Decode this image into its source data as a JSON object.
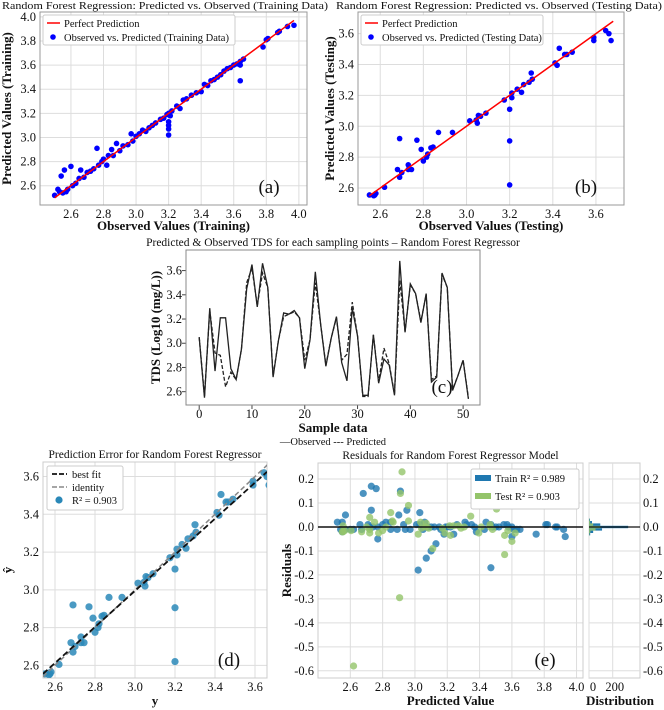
{
  "chart_data": [
    {
      "id": "a",
      "type": "scatter",
      "title": "Random Forest Regression: Predicted vs. Observed (Training Data)",
      "xlabel": "Observed Values (Training)",
      "ylabel": "Predicted Values (Training)",
      "panel_label": "(a)",
      "xticks": [
        "2.6",
        "2.8",
        "3.0",
        "3.2",
        "3.4",
        "3.6",
        "3.8",
        "4.0"
      ],
      "yticks": [
        "2.6",
        "2.8",
        "3.0",
        "3.2",
        "3.4",
        "3.6",
        "3.8",
        "4.0"
      ],
      "xlim": [
        2.41,
        4.05
      ],
      "ylim": [
        2.44,
        4.04
      ],
      "grid": true,
      "legend": [
        "Perfect Prediction",
        "Observed vs. Predicted (Training Data)"
      ],
      "legend_position": "top-left",
      "perfect_line": [
        2.5,
        3.97
      ],
      "colors": {
        "line": "#ff0000",
        "points": "#0000ff"
      },
      "points": [
        [
          2.5,
          2.52
        ],
        [
          2.52,
          2.57
        ],
        [
          2.53,
          2.55
        ],
        [
          2.54,
          2.68
        ],
        [
          2.55,
          2.54
        ],
        [
          2.56,
          2.73
        ],
        [
          2.57,
          2.55
        ],
        [
          2.58,
          2.57
        ],
        [
          2.6,
          2.76
        ],
        [
          2.61,
          2.6
        ],
        [
          2.63,
          2.62
        ],
        [
          2.65,
          2.66
        ],
        [
          2.66,
          2.73
        ],
        [
          2.68,
          2.67
        ],
        [
          2.7,
          2.71
        ],
        [
          2.72,
          2.72
        ],
        [
          2.74,
          2.74
        ],
        [
          2.76,
          2.91
        ],
        [
          2.77,
          2.77
        ],
        [
          2.79,
          2.8
        ],
        [
          2.8,
          2.82
        ],
        [
          2.82,
          2.77
        ],
        [
          2.83,
          2.85
        ],
        [
          2.85,
          2.9
        ],
        [
          2.86,
          2.85
        ],
        [
          2.88,
          2.95
        ],
        [
          2.9,
          2.89
        ],
        [
          2.92,
          2.93
        ],
        [
          2.95,
          2.94
        ],
        [
          2.97,
          3.03
        ],
        [
          2.98,
          2.97
        ],
        [
          3.0,
          3.01
        ],
        [
          3.02,
          3.03
        ],
        [
          3.04,
          3.06
        ],
        [
          3.06,
          3.05
        ],
        [
          3.08,
          3.08
        ],
        [
          3.1,
          3.1
        ],
        [
          3.12,
          3.12
        ],
        [
          3.15,
          3.15
        ],
        [
          3.17,
          3.16
        ],
        [
          3.19,
          3.19
        ],
        [
          3.2,
          3.2
        ],
        [
          3.2,
          3.13
        ],
        [
          3.2,
          3.07
        ],
        [
          3.2,
          3.02
        ],
        [
          3.2,
          3.1
        ],
        [
          3.21,
          3.18
        ],
        [
          3.22,
          3.22
        ],
        [
          3.25,
          3.26
        ],
        [
          3.27,
          3.24
        ],
        [
          3.29,
          3.31
        ],
        [
          3.31,
          3.32
        ],
        [
          3.34,
          3.35
        ],
        [
          3.37,
          3.37
        ],
        [
          3.4,
          3.38
        ],
        [
          3.42,
          3.44
        ],
        [
          3.44,
          3.43
        ],
        [
          3.46,
          3.47
        ],
        [
          3.48,
          3.48
        ],
        [
          3.5,
          3.5
        ],
        [
          3.52,
          3.52
        ],
        [
          3.54,
          3.55
        ],
        [
          3.56,
          3.57
        ],
        [
          3.58,
          3.58
        ],
        [
          3.6,
          3.6
        ],
        [
          3.62,
          3.61
        ],
        [
          3.64,
          3.63
        ],
        [
          3.64,
          3.47
        ],
        [
          3.64,
          3.6
        ],
        [
          3.66,
          3.65
        ],
        [
          3.78,
          3.75
        ],
        [
          3.8,
          3.81
        ],
        [
          3.81,
          3.82
        ],
        [
          3.87,
          3.87
        ],
        [
          3.88,
          3.88
        ],
        [
          3.93,
          3.92
        ],
        [
          3.97,
          3.93
        ]
      ]
    },
    {
      "id": "b",
      "type": "scatter",
      "title": "Random Forest Regression: Predicted vs. Observed (Testing Data)",
      "xlabel": "Observed Values (Testing)",
      "ylabel": "Predicted Values (Testing)",
      "panel_label": "(b)",
      "xticks": [
        "2.6",
        "2.8",
        "3.0",
        "3.2",
        "3.4",
        "3.6"
      ],
      "yticks": [
        "2.6",
        "2.8",
        "3.0",
        "3.2",
        "3.4",
        "3.6"
      ],
      "xlim": [
        2.497,
        3.73
      ],
      "ylim": [
        2.49,
        3.74
      ],
      "grid": true,
      "legend": [
        "Perfect Prediction",
        "Observed vs. Predicted (Testing Data)"
      ],
      "legend_position": "top-left",
      "perfect_line": [
        2.55,
        3.68
      ],
      "colors": {
        "line": "#ff0000",
        "points": "#0000ff"
      },
      "points": [
        [
          2.55,
          2.555
        ],
        [
          2.57,
          2.55
        ],
        [
          2.575,
          2.555
        ],
        [
          2.58,
          2.565
        ],
        [
          2.62,
          2.605
        ],
        [
          2.68,
          2.72
        ],
        [
          2.69,
          2.92
        ],
        [
          2.69,
          2.67
        ],
        [
          2.7,
          2.7
        ],
        [
          2.73,
          2.72
        ],
        [
          2.73,
          2.75
        ],
        [
          2.745,
          2.72
        ],
        [
          2.77,
          2.91
        ],
        [
          2.79,
          2.85
        ],
        [
          2.8,
          2.775
        ],
        [
          2.815,
          2.8
        ],
        [
          2.82,
          2.82
        ],
        [
          2.835,
          2.86
        ],
        [
          2.845,
          2.865
        ],
        [
          2.87,
          2.96
        ],
        [
          2.935,
          2.96
        ],
        [
          3.015,
          3.035
        ],
        [
          3.045,
          3.04
        ],
        [
          3.05,
          3.02
        ],
        [
          3.055,
          3.07
        ],
        [
          3.065,
          3.065
        ],
        [
          3.09,
          3.085
        ],
        [
          3.175,
          3.17
        ],
        [
          3.2,
          3.11
        ],
        [
          3.2,
          2.905
        ],
        [
          3.2,
          2.62
        ],
        [
          3.21,
          3.215
        ],
        [
          3.21,
          3.185
        ],
        [
          3.235,
          3.24
        ],
        [
          3.255,
          3.22
        ],
        [
          3.265,
          3.27
        ],
        [
          3.29,
          3.285
        ],
        [
          3.3,
          3.345
        ],
        [
          3.305,
          3.305
        ],
        [
          3.41,
          3.41
        ],
        [
          3.42,
          3.395
        ],
        [
          3.43,
          3.505
        ],
        [
          3.455,
          3.465
        ],
        [
          3.465,
          3.465
        ],
        [
          3.49,
          3.48
        ],
        [
          3.59,
          3.575
        ],
        [
          3.59,
          3.555
        ],
        [
          3.645,
          3.62
        ],
        [
          3.66,
          3.6
        ],
        [
          3.67,
          3.555
        ]
      ]
    },
    {
      "id": "c",
      "type": "line",
      "title": "Predicted & Observed TDS for each sampling points – Random Forest Regressor",
      "xlabel": "Sample data",
      "ylabel": "TDS (Log10 (mg/L))",
      "panel_label": "(c)",
      "xticks": [
        "0",
        "10",
        "20",
        "30",
        "40",
        "50"
      ],
      "yticks": [
        "2.6",
        "2.8",
        "3.0",
        "3.2",
        "3.4",
        "3.6"
      ],
      "xlim": [
        -2.5,
        53.2
      ],
      "ylim": [
        2.49,
        3.77
      ],
      "grid": false,
      "legend_text": "—Observed --- Predicted",
      "legend_position": "bottom-center",
      "series": [
        {
          "name": "Observed",
          "style": "solid",
          "values": [
            3.05,
            2.55,
            3.29,
            2.77,
            3.21,
            3.21,
            2.79,
            2.7,
            2.95,
            3.45,
            3.65,
            3.3,
            3.66,
            3.46,
            2.72,
            3.02,
            3.25,
            3.24,
            3.27,
            3.21,
            2.79,
            3.03,
            3.59,
            3.16,
            2.81,
            3.04,
            3.22,
            2.84,
            2.69,
            3.29,
            3.06,
            2.57,
            2.57,
            3.07,
            2.67,
            2.87,
            2.82,
            2.57,
            3.68,
            3.09,
            3.49,
            3.41,
            3.17,
            3.41,
            2.68,
            2.72,
            3.58,
            3.46,
            2.61,
            2.73,
            2.86,
            2.54
          ]
        },
        {
          "name": "Predicted",
          "style": "dashed",
          "values": [
            3.05,
            2.56,
            3.27,
            2.92,
            2.9,
            2.64,
            2.76,
            2.7,
            2.95,
            3.5,
            3.62,
            3.31,
            3.58,
            3.46,
            2.73,
            3.02,
            3.22,
            3.24,
            3.26,
            3.21,
            2.86,
            3.03,
            3.5,
            3.16,
            2.82,
            3.04,
            3.21,
            2.86,
            2.91,
            3.34,
            3.06,
            2.56,
            2.56,
            3.07,
            2.68,
            2.96,
            2.83,
            2.58,
            3.52,
            3.1,
            3.48,
            3.41,
            3.18,
            3.4,
            2.7,
            2.73,
            3.57,
            3.46,
            2.62,
            2.73,
            2.86,
            2.55
          ]
        }
      ]
    },
    {
      "id": "d",
      "type": "scatter",
      "title": "Prediction Error for Random Forest Regressor",
      "xlabel": "y",
      "ylabel": "ŷ",
      "panel_label": "(d)",
      "xticks": [
        "2.6",
        "2.8",
        "3.0",
        "3.2",
        "3.4",
        "3.6"
      ],
      "yticks": [
        "2.6",
        "2.8",
        "3.0",
        "3.2",
        "3.4",
        "3.6"
      ],
      "xlim": [
        2.54,
        3.66
      ],
      "ylim": [
        2.533,
        3.677
      ],
      "grid": true,
      "legend": [
        "best fit",
        "identity",
        "R² = 0.903"
      ],
      "legend_position": "top-left",
      "best_fit": [
        [
          2.54,
          2.555
        ],
        [
          3.66,
          3.625
        ]
      ],
      "identity": [
        2.54,
        3.677
      ],
      "points_from": "b",
      "colors": {
        "points": "#2a88b8",
        "best_fit": "#111111",
        "identity": "#888888"
      }
    },
    {
      "id": "e",
      "type": "scatter",
      "title": "Residuals for Random Forest Regressor Model",
      "xlabel": "Predicted Value",
      "ylabel": "Residuals",
      "panel_label": "(e)",
      "xticks": [
        "2.6",
        "2.8",
        "3.0",
        "3.2",
        "3.4",
        "3.6",
        "3.8",
        "4.0"
      ],
      "yticks": [
        "0.2",
        "0.1",
        "0.0",
        "-0.1",
        "-0.2",
        "-0.3",
        "-0.4",
        "-0.5",
        "-0.6"
      ],
      "xlim": [
        2.4,
        4.04
      ],
      "ylim": [
        -0.63,
        0.267
      ],
      "grid": true,
      "legend": [
        "Train R² = 0.989",
        "Test R² = 0.903"
      ],
      "legend_position": "top-right",
      "residual_of": [
        "a",
        "b"
      ],
      "colors": {
        "train": "#1f78b0",
        "test": "#94c46a"
      },
      "histogram": {
        "xlabel": "Distribution",
        "xticks": [
          "0",
          "200"
        ],
        "xlim": [
          0,
          430
        ],
        "bin_centers": [
          -0.03,
          -0.02,
          -0.01,
          0.0,
          0.01,
          0.02,
          0.03
        ],
        "train_counts": [
          10,
          35,
          110,
          330,
          95,
          25,
          8
        ],
        "test_counts": [
          4,
          12,
          55,
          95,
          35,
          10,
          4
        ]
      }
    }
  ]
}
